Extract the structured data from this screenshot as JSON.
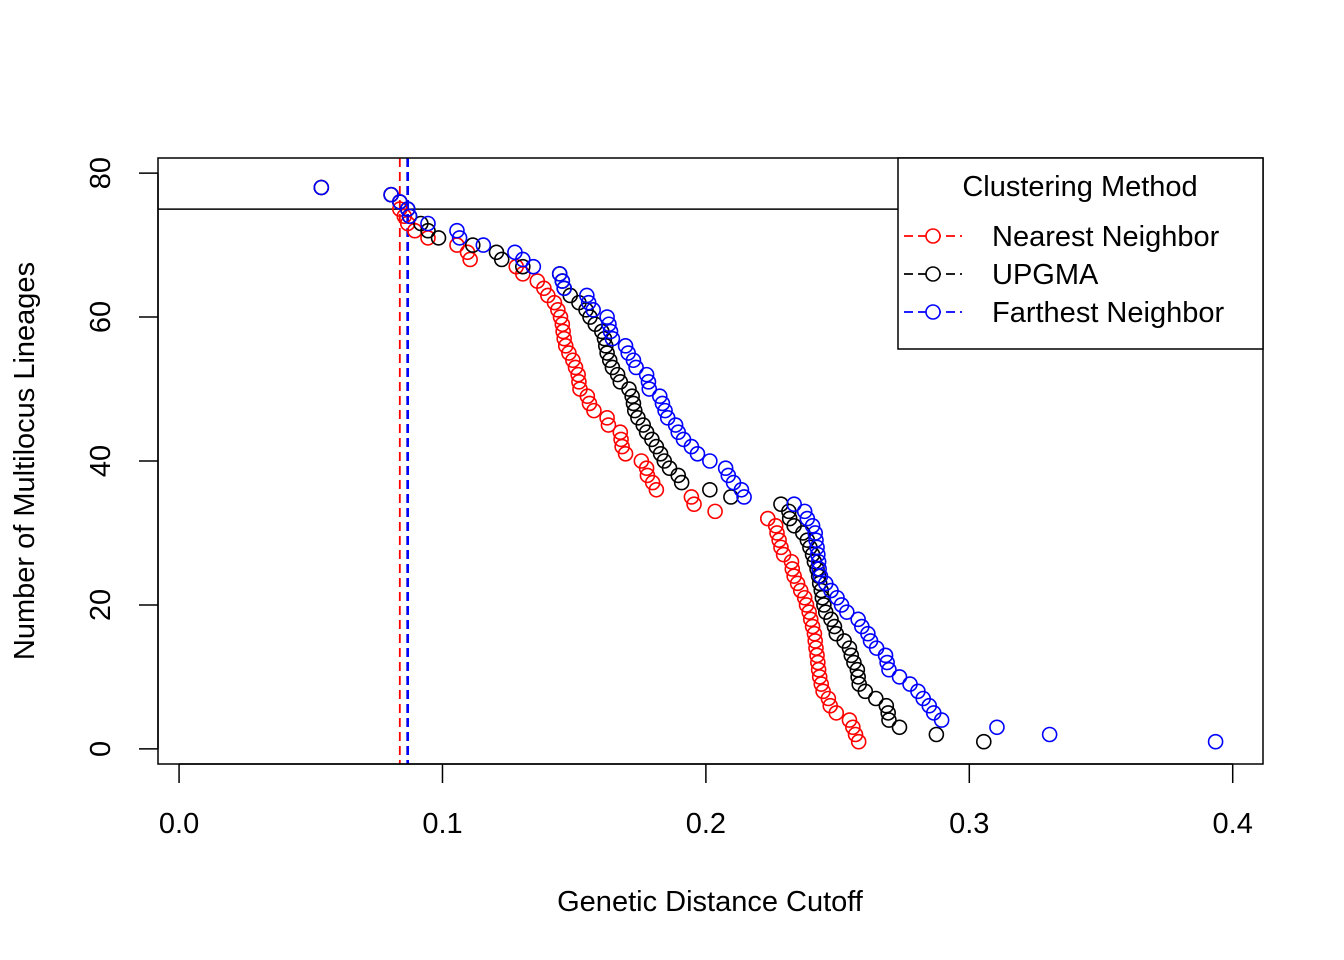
{
  "chart_data": {
    "type": "scatter",
    "title": "",
    "xlabel": "Genetic Distance Cutoff",
    "ylabel": "Number of Multilocus Lineages",
    "xlim": [
      -0.008,
      0.4115
    ],
    "ylim": [
      -2.1,
      82.1
    ],
    "x_ticks": [
      0.0,
      0.1,
      0.2,
      0.3,
      0.4
    ],
    "x_tick_labels": [
      "0.0",
      "0.1",
      "0.2",
      "0.3",
      "0.4"
    ],
    "y_ticks": [
      0,
      20,
      40,
      60,
      80
    ],
    "y_tick_labels": [
      "0",
      "20",
      "40",
      "60",
      "80"
    ],
    "grid": false,
    "legend_position": "top-right",
    "legend_title": "Clustering Method",
    "hline": 75,
    "vlines": [
      {
        "series": "Nearest Neighbor",
        "x": 0.0838,
        "color": "#FF0000",
        "style": "dashed"
      },
      {
        "series": "UPGMA",
        "x": 0.0868,
        "color": "#000000",
        "style": "dashed"
      },
      {
        "series": "Farthest Neighbor",
        "x": 0.0868,
        "color": "#0000FF",
        "style": "dashed"
      }
    ],
    "series": [
      {
        "name": "Nearest Neighbor",
        "color": "#FF0000",
        "points": [
          [
            0.054,
            78
          ],
          [
            0.0805,
            77
          ],
          [
            0.0838,
            76
          ],
          [
            0.0838,
            75
          ],
          [
            0.0855,
            74
          ],
          [
            0.0868,
            73
          ],
          [
            0.0895,
            72
          ],
          [
            0.0945,
            71
          ],
          [
            0.1055,
            70
          ],
          [
            0.1095,
            69
          ],
          [
            0.1105,
            68
          ],
          [
            0.128,
            67
          ],
          [
            0.1305,
            66
          ],
          [
            0.136,
            65
          ],
          [
            0.1385,
            64
          ],
          [
            0.14,
            63
          ],
          [
            0.1425,
            62
          ],
          [
            0.1438,
            61
          ],
          [
            0.1448,
            60
          ],
          [
            0.1455,
            59
          ],
          [
            0.1458,
            58
          ],
          [
            0.1462,
            57
          ],
          [
            0.1468,
            56
          ],
          [
            0.148,
            55
          ],
          [
            0.1495,
            54
          ],
          [
            0.1505,
            53
          ],
          [
            0.1515,
            52
          ],
          [
            0.1518,
            51
          ],
          [
            0.1522,
            50
          ],
          [
            0.155,
            49
          ],
          [
            0.1558,
            48
          ],
          [
            0.1575,
            47
          ],
          [
            0.1625,
            46
          ],
          [
            0.163,
            45
          ],
          [
            0.1675,
            44
          ],
          [
            0.1678,
            43
          ],
          [
            0.1682,
            42
          ],
          [
            0.1695,
            41
          ],
          [
            0.1755,
            40
          ],
          [
            0.1775,
            39
          ],
          [
            0.1778,
            38
          ],
          [
            0.1798,
            37
          ],
          [
            0.1812,
            36
          ],
          [
            0.1945,
            35
          ],
          [
            0.1955,
            34
          ],
          [
            0.2035,
            33
          ],
          [
            0.2235,
            32
          ],
          [
            0.2265,
            31
          ],
          [
            0.227,
            30
          ],
          [
            0.2278,
            29
          ],
          [
            0.2285,
            28
          ],
          [
            0.2295,
            27
          ],
          [
            0.2325,
            26
          ],
          [
            0.2328,
            25
          ],
          [
            0.2335,
            24
          ],
          [
            0.2348,
            23
          ],
          [
            0.236,
            22
          ],
          [
            0.2375,
            21
          ],
          [
            0.2382,
            20
          ],
          [
            0.2392,
            19
          ],
          [
            0.2398,
            18
          ],
          [
            0.2405,
            17
          ],
          [
            0.2412,
            16
          ],
          [
            0.2415,
            15
          ],
          [
            0.2418,
            14
          ],
          [
            0.2422,
            13
          ],
          [
            0.2425,
            12
          ],
          [
            0.2428,
            11
          ],
          [
            0.2432,
            10
          ],
          [
            0.2438,
            9
          ],
          [
            0.2445,
            8
          ],
          [
            0.2465,
            7
          ],
          [
            0.2472,
            6
          ],
          [
            0.2495,
            5
          ],
          [
            0.2545,
            4
          ],
          [
            0.2558,
            3
          ],
          [
            0.2568,
            2
          ],
          [
            0.258,
            1
          ]
        ]
      },
      {
        "name": "UPGMA",
        "color": "#000000",
        "points": [
          [
            0.054,
            78
          ],
          [
            0.0805,
            77
          ],
          [
            0.0838,
            76
          ],
          [
            0.0868,
            75
          ],
          [
            0.0875,
            74
          ],
          [
            0.0918,
            73
          ],
          [
            0.0945,
            72
          ],
          [
            0.0985,
            71
          ],
          [
            0.1115,
            70
          ],
          [
            0.1205,
            69
          ],
          [
            0.1225,
            68
          ],
          [
            0.1305,
            67
          ],
          [
            0.1445,
            66
          ],
          [
            0.1455,
            65
          ],
          [
            0.1462,
            64
          ],
          [
            0.1485,
            63
          ],
          [
            0.1518,
            62
          ],
          [
            0.1545,
            61
          ],
          [
            0.156,
            60
          ],
          [
            0.158,
            59
          ],
          [
            0.1605,
            58
          ],
          [
            0.1615,
            57
          ],
          [
            0.162,
            56
          ],
          [
            0.1625,
            55
          ],
          [
            0.1635,
            54
          ],
          [
            0.1645,
            53
          ],
          [
            0.1665,
            52
          ],
          [
            0.1675,
            51
          ],
          [
            0.1708,
            50
          ],
          [
            0.172,
            49
          ],
          [
            0.1725,
            48
          ],
          [
            0.173,
            47
          ],
          [
            0.1742,
            46
          ],
          [
            0.1762,
            45
          ],
          [
            0.1775,
            44
          ],
          [
            0.1795,
            43
          ],
          [
            0.1812,
            42
          ],
          [
            0.1828,
            41
          ],
          [
            0.1842,
            40
          ],
          [
            0.1862,
            39
          ],
          [
            0.1895,
            38
          ],
          [
            0.1908,
            37
          ],
          [
            0.2015,
            36
          ],
          [
            0.2095,
            35
          ],
          [
            0.2285,
            34
          ],
          [
            0.2315,
            33
          ],
          [
            0.2318,
            32
          ],
          [
            0.2335,
            31
          ],
          [
            0.2368,
            30
          ],
          [
            0.2385,
            29
          ],
          [
            0.2395,
            28
          ],
          [
            0.2405,
            27
          ],
          [
            0.2412,
            26
          ],
          [
            0.2422,
            25
          ],
          [
            0.2428,
            24
          ],
          [
            0.2432,
            23
          ],
          [
            0.2438,
            22
          ],
          [
            0.2442,
            21
          ],
          [
            0.2448,
            20
          ],
          [
            0.2455,
            19
          ],
          [
            0.2475,
            18
          ],
          [
            0.2488,
            17
          ],
          [
            0.2495,
            16
          ],
          [
            0.2525,
            15
          ],
          [
            0.2545,
            14
          ],
          [
            0.2552,
            13
          ],
          [
            0.2562,
            12
          ],
          [
            0.2575,
            11
          ],
          [
            0.2578,
            10
          ],
          [
            0.2582,
            9
          ],
          [
            0.2605,
            8
          ],
          [
            0.2645,
            7
          ],
          [
            0.2685,
            6
          ],
          [
            0.2692,
            5
          ],
          [
            0.2695,
            4
          ],
          [
            0.2735,
            3
          ],
          [
            0.2875,
            2
          ],
          [
            0.3055,
            1
          ]
        ]
      },
      {
        "name": "Farthest Neighbor",
        "color": "#0000FF",
        "points": [
          [
            0.054,
            78
          ],
          [
            0.0805,
            77
          ],
          [
            0.0838,
            76
          ],
          [
            0.0868,
            75
          ],
          [
            0.0875,
            74
          ],
          [
            0.0945,
            73
          ],
          [
            0.1055,
            72
          ],
          [
            0.1065,
            71
          ],
          [
            0.1155,
            70
          ],
          [
            0.1275,
            69
          ],
          [
            0.1305,
            68
          ],
          [
            0.1345,
            67
          ],
          [
            0.1445,
            66
          ],
          [
            0.1455,
            65
          ],
          [
            0.1462,
            64
          ],
          [
            0.1548,
            63
          ],
          [
            0.1555,
            62
          ],
          [
            0.1572,
            61
          ],
          [
            0.1625,
            60
          ],
          [
            0.1632,
            59
          ],
          [
            0.1638,
            58
          ],
          [
            0.1645,
            57
          ],
          [
            0.1695,
            56
          ],
          [
            0.1705,
            55
          ],
          [
            0.1725,
            54
          ],
          [
            0.1735,
            53
          ],
          [
            0.1775,
            52
          ],
          [
            0.1782,
            51
          ],
          [
            0.1785,
            50
          ],
          [
            0.1825,
            49
          ],
          [
            0.1835,
            48
          ],
          [
            0.1845,
            47
          ],
          [
            0.1855,
            46
          ],
          [
            0.1885,
            45
          ],
          [
            0.1895,
            44
          ],
          [
            0.1915,
            43
          ],
          [
            0.1945,
            42
          ],
          [
            0.1968,
            41
          ],
          [
            0.2015,
            40
          ],
          [
            0.2075,
            39
          ],
          [
            0.2085,
            38
          ],
          [
            0.2105,
            37
          ],
          [
            0.2135,
            36
          ],
          [
            0.2145,
            35
          ],
          [
            0.2335,
            34
          ],
          [
            0.2375,
            33
          ],
          [
            0.2385,
            32
          ],
          [
            0.2405,
            31
          ],
          [
            0.2415,
            30
          ],
          [
            0.2418,
            29
          ],
          [
            0.2422,
            28
          ],
          [
            0.2425,
            27
          ],
          [
            0.2428,
            26
          ],
          [
            0.243,
            25
          ],
          [
            0.2435,
            24
          ],
          [
            0.2455,
            23
          ],
          [
            0.2475,
            22
          ],
          [
            0.2498,
            21
          ],
          [
            0.2515,
            20
          ],
          [
            0.2535,
            19
          ],
          [
            0.2578,
            18
          ],
          [
            0.2592,
            17
          ],
          [
            0.2615,
            16
          ],
          [
            0.2625,
            15
          ],
          [
            0.2648,
            14
          ],
          [
            0.2682,
            13
          ],
          [
            0.2688,
            12
          ],
          [
            0.2695,
            11
          ],
          [
            0.2735,
            10
          ],
          [
            0.2775,
            9
          ],
          [
            0.2805,
            8
          ],
          [
            0.2825,
            7
          ],
          [
            0.2848,
            6
          ],
          [
            0.2865,
            5
          ],
          [
            0.2895,
            4
          ],
          [
            0.3105,
            3
          ],
          [
            0.3305,
            2
          ],
          [
            0.3935,
            1
          ]
        ]
      }
    ]
  }
}
